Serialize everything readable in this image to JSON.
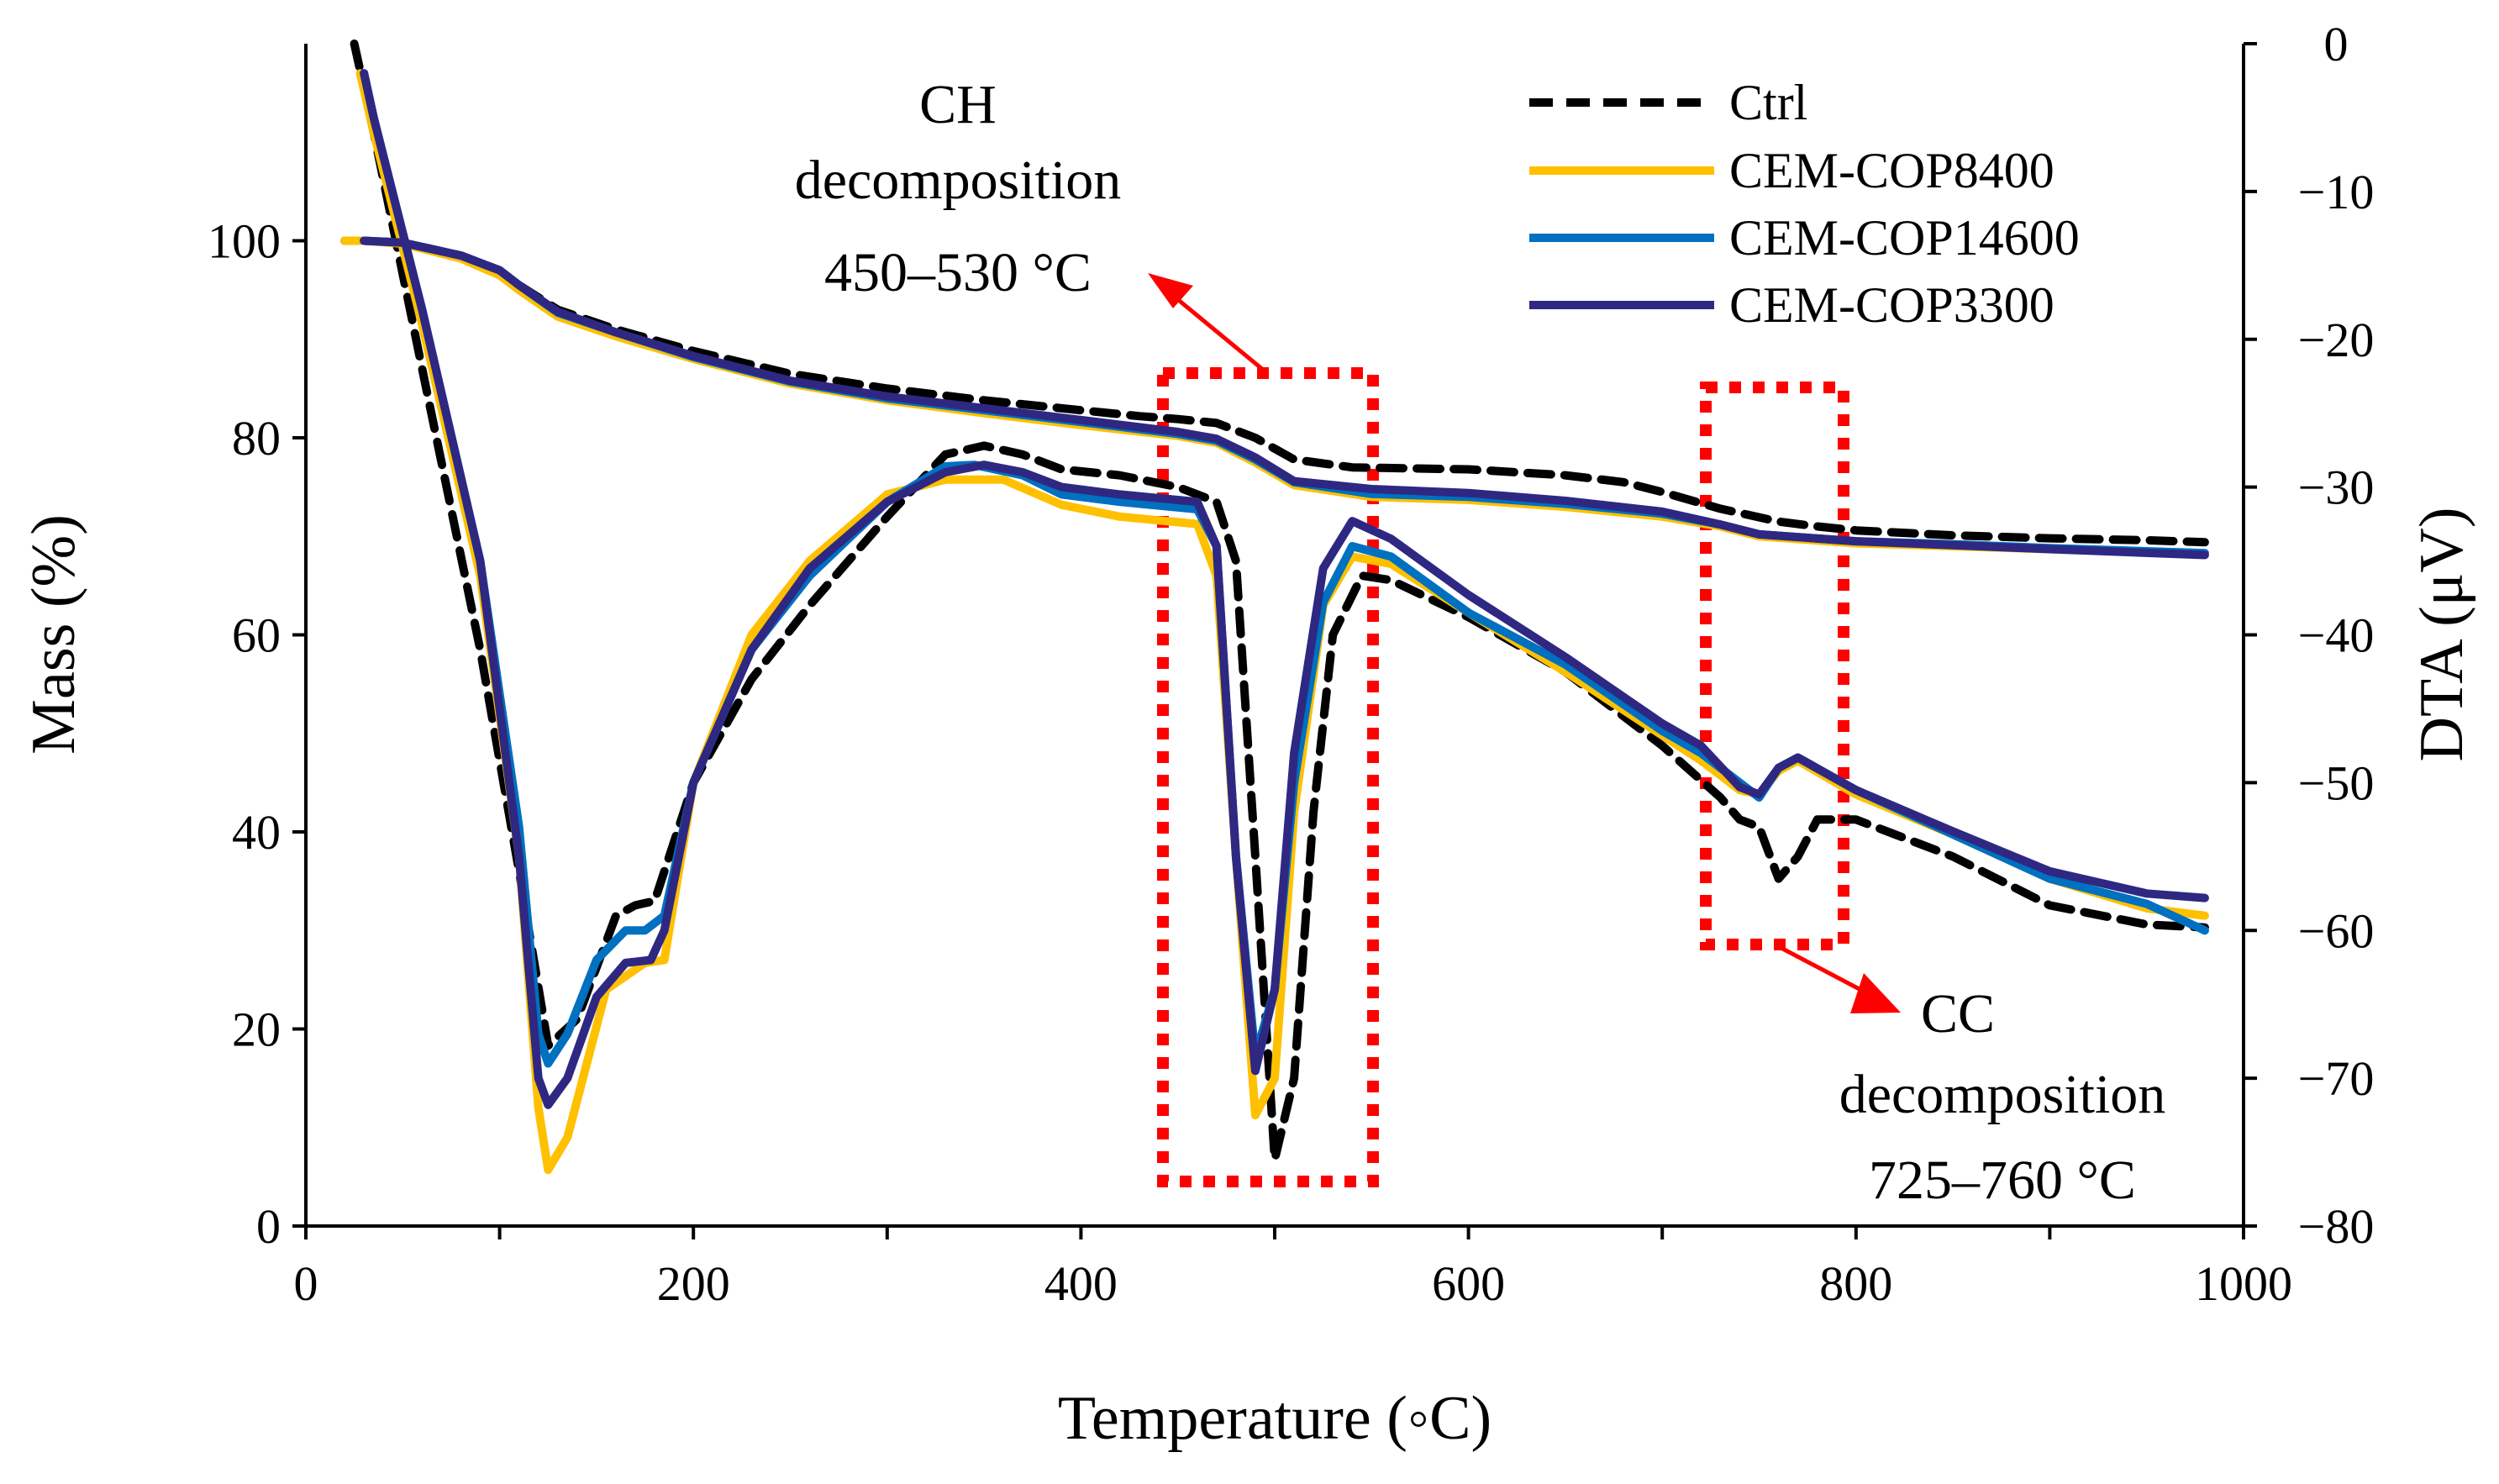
{
  "chart_data": {
    "type": "line",
    "title": "",
    "xlabel": "Temperature (◦C)",
    "ylabel": "Mass (%)",
    "y2label": "DTA (μV)",
    "xlim": [
      0,
      1000
    ],
    "ylim": [
      0,
      120
    ],
    "y2lim": [
      -80,
      0
    ],
    "x_ticks": [
      "0",
      "200",
      "400",
      "600",
      "800",
      "1000"
    ],
    "y_ticks": [
      "0",
      "20",
      "40",
      "60",
      "80",
      "100"
    ],
    "y2_ticks": [
      "0",
      "−10",
      "−20",
      "−30",
      "−40",
      "−50",
      "−60",
      "−70",
      "−80"
    ],
    "grid": false,
    "legend_position": "top-right",
    "annotations": {
      "ch": [
        "CH",
        "decomposition",
        "450‒530 °C"
      ],
      "cc": [
        "CC",
        "decomposition",
        "725‒760 °C"
      ]
    },
    "series": [
      {
        "name": "Ctrl",
        "color": "#000000",
        "dash": true,
        "mass": [
          [
            20,
            100
          ],
          [
            30,
            100
          ],
          [
            50,
            99.8
          ],
          [
            80,
            98.5
          ],
          [
            100,
            97
          ],
          [
            110,
            95.5
          ],
          [
            130,
            93
          ],
          [
            160,
            91
          ],
          [
            200,
            88.8
          ],
          [
            250,
            86.5
          ],
          [
            300,
            85
          ],
          [
            350,
            83.8
          ],
          [
            400,
            82.8
          ],
          [
            430,
            82.2
          ],
          [
            450,
            81.9
          ],
          [
            470,
            81.5
          ],
          [
            490,
            80
          ],
          [
            510,
            77.8
          ],
          [
            540,
            77
          ],
          [
            600,
            76.8
          ],
          [
            650,
            76.2
          ],
          [
            680,
            75.5
          ],
          [
            700,
            74.5
          ],
          [
            730,
            72.8
          ],
          [
            760,
            71.5
          ],
          [
            780,
            71
          ],
          [
            800,
            70.6
          ],
          [
            850,
            70.1
          ],
          [
            900,
            69.8
          ],
          [
            950,
            69.6
          ],
          [
            980,
            69.4
          ]
        ],
        "dta": [
          [
            25,
            0
          ],
          [
            35,
            -6
          ],
          [
            60,
            -22
          ],
          [
            90,
            -41
          ],
          [
            110,
            -56
          ],
          [
            125,
            -67.8
          ],
          [
            140,
            -66
          ],
          [
            160,
            -59
          ],
          [
            170,
            -58.3
          ],
          [
            180,
            -58
          ],
          [
            200,
            -50
          ],
          [
            230,
            -43
          ],
          [
            260,
            -38
          ],
          [
            300,
            -32
          ],
          [
            330,
            -27.8
          ],
          [
            350,
            -27.2
          ],
          [
            370,
            -27.8
          ],
          [
            390,
            -28.8
          ],
          [
            420,
            -29.2
          ],
          [
            450,
            -30
          ],
          [
            470,
            -31
          ],
          [
            480,
            -35
          ],
          [
            490,
            -55
          ],
          [
            500,
            -75.5
          ],
          [
            510,
            -70
          ],
          [
            520,
            -52
          ],
          [
            530,
            -40
          ],
          [
            545,
            -36
          ],
          [
            560,
            -36.3
          ],
          [
            600,
            -38.8
          ],
          [
            650,
            -42.5
          ],
          [
            700,
            -47.5
          ],
          [
            730,
            -51
          ],
          [
            740,
            -52.5
          ],
          [
            750,
            -53
          ],
          [
            760,
            -56.5
          ],
          [
            770,
            -55
          ],
          [
            780,
            -52.5
          ],
          [
            800,
            -52.5
          ],
          [
            850,
            -55
          ],
          [
            900,
            -58.3
          ],
          [
            950,
            -59.6
          ],
          [
            980,
            -59.8
          ]
        ]
      },
      {
        "name": "CEM-COP8400",
        "color": "#FFC000",
        "dash": false,
        "mass": [
          [
            20,
            100
          ],
          [
            30,
            100
          ],
          [
            50,
            99.7
          ],
          [
            80,
            98.2
          ],
          [
            100,
            96.5
          ],
          [
            110,
            95
          ],
          [
            130,
            92.3
          ],
          [
            160,
            90.3
          ],
          [
            200,
            88
          ],
          [
            250,
            85.5
          ],
          [
            300,
            83.8
          ],
          [
            350,
            82.5
          ],
          [
            400,
            81.3
          ],
          [
            450,
            80.2
          ],
          [
            470,
            79.5
          ],
          [
            490,
            77.5
          ],
          [
            510,
            75.2
          ],
          [
            550,
            74
          ],
          [
            600,
            73.7
          ],
          [
            650,
            73
          ],
          [
            700,
            72
          ],
          [
            730,
            71
          ],
          [
            750,
            70
          ],
          [
            800,
            69.3
          ],
          [
            850,
            69
          ],
          [
            900,
            68.7
          ],
          [
            980,
            68.3
          ]
        ],
        "dta": [
          [
            28,
            -2
          ],
          [
            35,
            -6
          ],
          [
            60,
            -19
          ],
          [
            90,
            -36
          ],
          [
            110,
            -55
          ],
          [
            120,
            -72
          ],
          [
            125,
            -76.2
          ],
          [
            135,
            -74
          ],
          [
            155,
            -64
          ],
          [
            175,
            -62.2
          ],
          [
            185,
            -62
          ],
          [
            200,
            -50
          ],
          [
            230,
            -40
          ],
          [
            260,
            -35
          ],
          [
            300,
            -30.5
          ],
          [
            330,
            -29.5
          ],
          [
            360,
            -29.5
          ],
          [
            390,
            -31.2
          ],
          [
            420,
            -32
          ],
          [
            460,
            -32.5
          ],
          [
            470,
            -36
          ],
          [
            480,
            -55
          ],
          [
            490,
            -72.5
          ],
          [
            500,
            -70
          ],
          [
            510,
            -52
          ],
          [
            525,
            -38
          ],
          [
            540,
            -34.7
          ],
          [
            560,
            -35.2
          ],
          [
            600,
            -38.5
          ],
          [
            650,
            -42.5
          ],
          [
            700,
            -46.8
          ],
          [
            720,
            -48.5
          ],
          [
            740,
            -50.5
          ],
          [
            750,
            -50.8
          ],
          [
            760,
            -49.2
          ],
          [
            770,
            -48.5
          ],
          [
            800,
            -50.8
          ],
          [
            850,
            -53.5
          ],
          [
            900,
            -56.5
          ],
          [
            950,
            -58.5
          ],
          [
            980,
            -59
          ]
        ]
      },
      {
        "name": "CEM-COP14600",
        "color": "#0070C0",
        "dash": false,
        "mass": [
          [
            30,
            100
          ],
          [
            50,
            99.8
          ],
          [
            80,
            98.5
          ],
          [
            100,
            97
          ],
          [
            110,
            95.5
          ],
          [
            130,
            92.7
          ],
          [
            160,
            90.7
          ],
          [
            200,
            88.2
          ],
          [
            250,
            85.7
          ],
          [
            300,
            84
          ],
          [
            350,
            82.8
          ],
          [
            400,
            81.6
          ],
          [
            450,
            80.4
          ],
          [
            470,
            79.7
          ],
          [
            490,
            77.8
          ],
          [
            510,
            75.5
          ],
          [
            550,
            74.3
          ],
          [
            600,
            74
          ],
          [
            650,
            73.3
          ],
          [
            700,
            72.3
          ],
          [
            730,
            71.2
          ],
          [
            750,
            70.2
          ],
          [
            800,
            69.5
          ],
          [
            850,
            69.2
          ],
          [
            900,
            68.8
          ],
          [
            980,
            68.3
          ]
        ],
        "dta": [
          [
            30,
            -2
          ],
          [
            35,
            -5
          ],
          [
            60,
            -18
          ],
          [
            90,
            -35
          ],
          [
            110,
            -53
          ],
          [
            120,
            -67
          ],
          [
            125,
            -69
          ],
          [
            135,
            -67
          ],
          [
            150,
            -62
          ],
          [
            165,
            -60
          ],
          [
            175,
            -60
          ],
          [
            185,
            -59
          ],
          [
            200,
            -50
          ],
          [
            230,
            -41
          ],
          [
            260,
            -36
          ],
          [
            300,
            -31
          ],
          [
            330,
            -28.6
          ],
          [
            345,
            -28.5
          ],
          [
            370,
            -29.2
          ],
          [
            390,
            -30.5
          ],
          [
            420,
            -31
          ],
          [
            460,
            -31.5
          ],
          [
            470,
            -34
          ],
          [
            480,
            -55
          ],
          [
            490,
            -68.5
          ],
          [
            500,
            -64
          ],
          [
            510,
            -50
          ],
          [
            525,
            -37.8
          ],
          [
            540,
            -34
          ],
          [
            560,
            -34.7
          ],
          [
            600,
            -38.5
          ],
          [
            650,
            -42
          ],
          [
            700,
            -46.5
          ],
          [
            720,
            -48
          ],
          [
            740,
            -50
          ],
          [
            750,
            -51
          ],
          [
            760,
            -49
          ],
          [
            770,
            -48.3
          ],
          [
            800,
            -50.5
          ],
          [
            850,
            -53.5
          ],
          [
            900,
            -56.5
          ],
          [
            950,
            -58.2
          ],
          [
            980,
            -60
          ]
        ]
      },
      {
        "name": "CEM-COP3300",
        "color": "#2E2883",
        "dash": false,
        "mass": [
          [
            30,
            100
          ],
          [
            50,
            99.8
          ],
          [
            80,
            98.5
          ],
          [
            100,
            97
          ],
          [
            110,
            95.5
          ],
          [
            130,
            92.8
          ],
          [
            160,
            90.7
          ],
          [
            200,
            88.3
          ],
          [
            250,
            85.8
          ],
          [
            300,
            84.2
          ],
          [
            350,
            83
          ],
          [
            400,
            81.8
          ],
          [
            450,
            80.6
          ],
          [
            470,
            79.9
          ],
          [
            490,
            78
          ],
          [
            510,
            75.6
          ],
          [
            550,
            74.8
          ],
          [
            600,
            74.4
          ],
          [
            650,
            73.6
          ],
          [
            700,
            72.5
          ],
          [
            730,
            71.2
          ],
          [
            750,
            70.2
          ],
          [
            800,
            69.5
          ],
          [
            850,
            69.1
          ],
          [
            900,
            68.7
          ],
          [
            980,
            68.1
          ]
        ],
        "dta": [
          [
            30,
            -2
          ],
          [
            35,
            -5
          ],
          [
            60,
            -18
          ],
          [
            90,
            -35
          ],
          [
            110,
            -55
          ],
          [
            120,
            -70
          ],
          [
            125,
            -71.8
          ],
          [
            135,
            -70
          ],
          [
            150,
            -64.5
          ],
          [
            165,
            -62.2
          ],
          [
            178,
            -62
          ],
          [
            185,
            -60
          ],
          [
            200,
            -50
          ],
          [
            230,
            -41
          ],
          [
            260,
            -35.5
          ],
          [
            300,
            -31
          ],
          [
            330,
            -29
          ],
          [
            350,
            -28.5
          ],
          [
            370,
            -29
          ],
          [
            390,
            -30
          ],
          [
            420,
            -30.5
          ],
          [
            460,
            -31
          ],
          [
            470,
            -34
          ],
          [
            480,
            -55
          ],
          [
            490,
            -69.5
          ],
          [
            500,
            -64
          ],
          [
            510,
            -48
          ],
          [
            525,
            -35.5
          ],
          [
            540,
            -32.3
          ],
          [
            560,
            -33.5
          ],
          [
            600,
            -37.3
          ],
          [
            650,
            -41.5
          ],
          [
            700,
            -46
          ],
          [
            720,
            -47.5
          ],
          [
            740,
            -50.3
          ],
          [
            750,
            -50.8
          ],
          [
            760,
            -49
          ],
          [
            770,
            -48.3
          ],
          [
            800,
            -50.5
          ],
          [
            850,
            -53.3
          ],
          [
            900,
            -56
          ],
          [
            950,
            -57.5
          ],
          [
            980,
            -57.8
          ]
        ]
      }
    ]
  }
}
